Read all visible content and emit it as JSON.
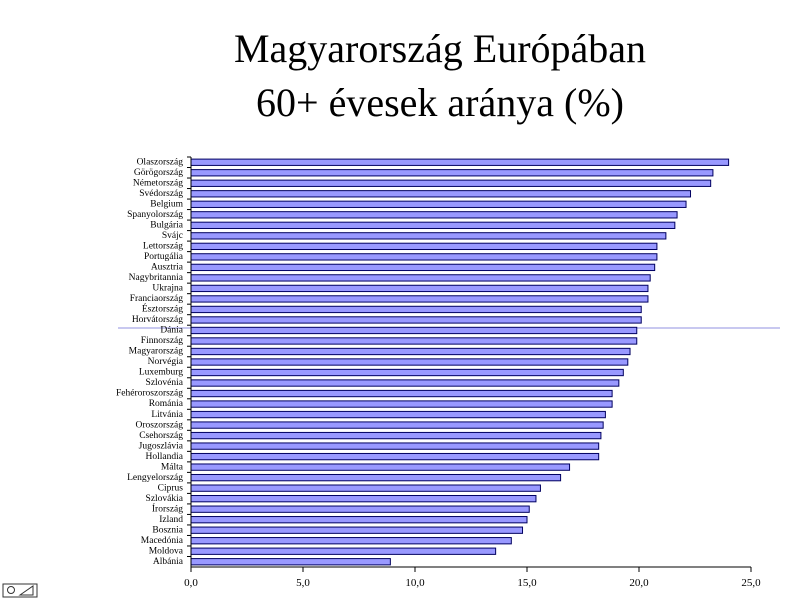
{
  "chart_data": {
    "type": "bar",
    "orientation": "horizontal",
    "title": "Magyarország Európában",
    "subtitle": "60+ évesek aránya (%)",
    "categories": [
      "Olaszország",
      "Görögország",
      "Németország",
      "Svédország",
      "Belgium",
      "Spanyolország",
      "Bulgária",
      "Svájc",
      "Lettország",
      "Portugália",
      "Ausztria",
      "Nagybritannia",
      "Ukrajna",
      "Franciaország",
      "Észtország",
      "Horvátország",
      "Dánia",
      "Finnország",
      "Magyarország",
      "Norvégia",
      "Luxemburg",
      "Szlovénia",
      "Fehéroroszország",
      "Románia",
      "Litvánia",
      "Oroszország",
      "Csehország",
      "Jugoszlávia",
      "Hollandia",
      "Málta",
      "Lengyelország",
      "Ciprus",
      "Szlovákia",
      "Írország",
      "Izland",
      "Bosznia",
      "Macedónia",
      "Moldova",
      "Albánia"
    ],
    "values": [
      24.0,
      23.3,
      23.2,
      22.3,
      22.1,
      21.7,
      21.6,
      21.2,
      20.8,
      20.8,
      20.7,
      20.5,
      20.4,
      20.4,
      20.1,
      20.1,
      19.9,
      19.9,
      19.6,
      19.5,
      19.3,
      19.1,
      18.8,
      18.8,
      18.5,
      18.4,
      18.3,
      18.2,
      18.2,
      16.9,
      16.5,
      15.6,
      15.4,
      15.1,
      15.0,
      14.8,
      14.3,
      13.6,
      8.9
    ],
    "color": "#9999ff",
    "xlim": [
      0,
      25
    ],
    "xticks": [
      {
        "value": 0,
        "label": "0,0"
      },
      {
        "value": 5,
        "label": "5,0"
      },
      {
        "value": 10,
        "label": "10,0"
      },
      {
        "value": 15,
        "label": "15,0"
      },
      {
        "value": 20,
        "label": "20,0"
      },
      {
        "value": 25,
        "label": "25,0"
      }
    ],
    "grid": false
  }
}
